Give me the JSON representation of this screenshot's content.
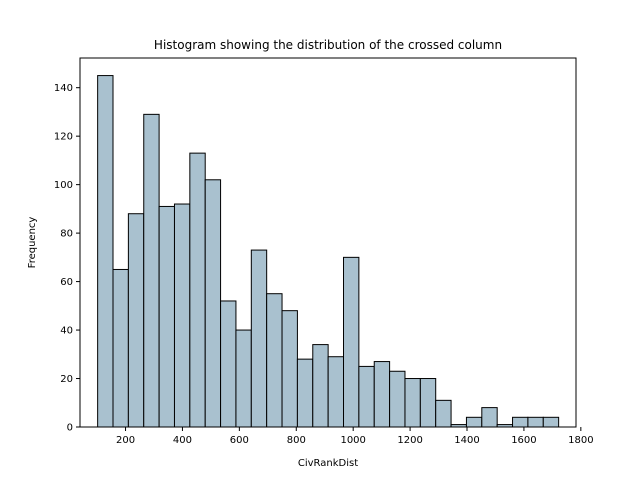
{
  "chart_data": {
    "type": "bar",
    "title": "Histogram showing the distribution of the crossed column",
    "xlabel": "CivRankDist",
    "ylabel": "Frequency",
    "bar_color": "#a9c1cf",
    "edge_color": "#000000",
    "xlim": [
      40,
      1783
    ],
    "ylim": [
      0,
      152.25
    ],
    "xticks": [
      200,
      400,
      600,
      800,
      1000,
      1200,
      1400,
      1600,
      1800
    ],
    "yticks": [
      0,
      20,
      40,
      60,
      80,
      100,
      120,
      140
    ],
    "bin_start": 102,
    "bin_width": 54,
    "values": [
      145,
      65,
      88,
      129,
      91,
      92,
      113,
      102,
      52,
      40,
      73,
      55,
      48,
      28,
      34,
      29,
      70,
      25,
      27,
      23,
      20,
      20,
      11,
      1,
      4,
      8,
      1,
      4,
      4,
      4
    ]
  }
}
